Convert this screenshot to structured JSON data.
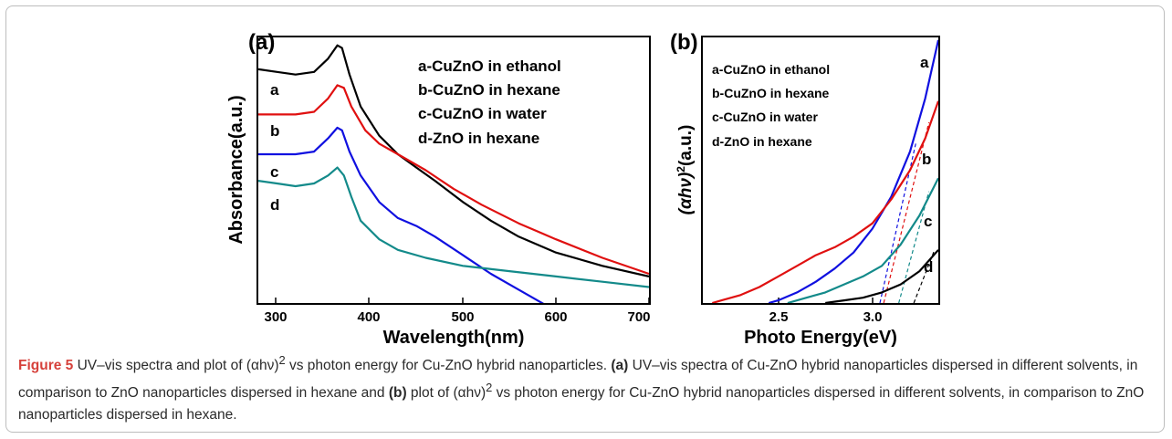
{
  "chart_data": [
    {
      "type": "line",
      "panel_label": "(a)",
      "xlabel": "Wavelength(nm)",
      "ylabel": "Absorbance(a.u.)",
      "xlim": [
        280,
        700
      ],
      "ylim": [
        0,
        1.0
      ],
      "xticks": [
        300,
        400,
        500,
        600,
        700
      ],
      "yticks_visible": false,
      "grid": false,
      "legend_position": "top-right",
      "legend": [
        "a-CuZnO in ethanol",
        "b-CuZnO in hexane",
        "c-CuZnO in water",
        "d-ZnO in hexane"
      ],
      "series": [
        {
          "name": "a",
          "color": "#000000",
          "points": [
            [
              280,
              0.88
            ],
            [
              300,
              0.87
            ],
            [
              320,
              0.86
            ],
            [
              340,
              0.87
            ],
            [
              355,
              0.92
            ],
            [
              365,
              0.97
            ],
            [
              370,
              0.96
            ],
            [
              378,
              0.86
            ],
            [
              390,
              0.74
            ],
            [
              410,
              0.63
            ],
            [
              430,
              0.56
            ],
            [
              450,
              0.51
            ],
            [
              470,
              0.46
            ],
            [
              500,
              0.38
            ],
            [
              530,
              0.31
            ],
            [
              560,
              0.25
            ],
            [
              600,
              0.19
            ],
            [
              650,
              0.14
            ],
            [
              700,
              0.1
            ]
          ]
        },
        {
          "name": "b",
          "color": "#e01010",
          "points": [
            [
              280,
              0.71
            ],
            [
              300,
              0.71
            ],
            [
              320,
              0.71
            ],
            [
              340,
              0.72
            ],
            [
              355,
              0.77
            ],
            [
              365,
              0.82
            ],
            [
              372,
              0.81
            ],
            [
              380,
              0.74
            ],
            [
              395,
              0.65
            ],
            [
              410,
              0.6
            ],
            [
              430,
              0.56
            ],
            [
              460,
              0.5
            ],
            [
              490,
              0.43
            ],
            [
              520,
              0.37
            ],
            [
              560,
              0.3
            ],
            [
              600,
              0.24
            ],
            [
              650,
              0.17
            ],
            [
              700,
              0.11
            ]
          ]
        },
        {
          "name": "c",
          "color": "#1010e0",
          "points": [
            [
              280,
              0.56
            ],
            [
              300,
              0.56
            ],
            [
              320,
              0.56
            ],
            [
              340,
              0.57
            ],
            [
              355,
              0.62
            ],
            [
              365,
              0.66
            ],
            [
              370,
              0.65
            ],
            [
              378,
              0.57
            ],
            [
              390,
              0.48
            ],
            [
              410,
              0.38
            ],
            [
              430,
              0.32
            ],
            [
              450,
              0.29
            ],
            [
              470,
              0.25
            ],
            [
              500,
              0.18
            ],
            [
              530,
              0.11
            ],
            [
              560,
              0.05
            ],
            [
              590,
              -0.01
            ]
          ]
        },
        {
          "name": "d",
          "color": "#138a8a",
          "points": [
            [
              280,
              0.46
            ],
            [
              300,
              0.45
            ],
            [
              320,
              0.44
            ],
            [
              340,
              0.45
            ],
            [
              355,
              0.48
            ],
            [
              365,
              0.51
            ],
            [
              372,
              0.48
            ],
            [
              380,
              0.4
            ],
            [
              390,
              0.31
            ],
            [
              410,
              0.24
            ],
            [
              430,
              0.2
            ],
            [
              460,
              0.17
            ],
            [
              500,
              0.14
            ],
            [
              550,
              0.12
            ],
            [
              600,
              0.1
            ],
            [
              650,
              0.08
            ],
            [
              700,
              0.06
            ]
          ]
        }
      ]
    },
    {
      "type": "line",
      "panel_label": "(b)",
      "xlabel": "Photo Energy(eV)",
      "ylabel_prefix": "(αhν)",
      "ylabel_sup": "2",
      "ylabel_suffix": "(a.u.)",
      "xlim": [
        2.1,
        3.35
      ],
      "ylim": [
        0,
        1.0
      ],
      "xticks": [
        2.5,
        3.0
      ],
      "yticks_visible": false,
      "grid": false,
      "legend_position": "top-left",
      "legend": [
        "a-CuZnO in ethanol",
        "b-CuZnO in hexane",
        "c-CuZnO in water",
        "d-ZnO in hexane"
      ],
      "series": [
        {
          "name": "a",
          "color": "#1010e0",
          "points": [
            [
              2.45,
              0.0
            ],
            [
              2.5,
              0.01
            ],
            [
              2.6,
              0.04
            ],
            [
              2.7,
              0.08
            ],
            [
              2.8,
              0.13
            ],
            [
              2.9,
              0.19
            ],
            [
              3.0,
              0.28
            ],
            [
              3.1,
              0.4
            ],
            [
              3.2,
              0.57
            ],
            [
              3.28,
              0.77
            ],
            [
              3.35,
              0.99
            ]
          ]
        },
        {
          "name": "b",
          "color": "#e01010",
          "points": [
            [
              2.15,
              0.0
            ],
            [
              2.2,
              0.01
            ],
            [
              2.3,
              0.03
            ],
            [
              2.4,
              0.06
            ],
            [
              2.5,
              0.1
            ],
            [
              2.6,
              0.14
            ],
            [
              2.7,
              0.18
            ],
            [
              2.8,
              0.21
            ],
            [
              2.9,
              0.25
            ],
            [
              3.0,
              0.3
            ],
            [
              3.1,
              0.39
            ],
            [
              3.2,
              0.5
            ],
            [
              3.28,
              0.62
            ],
            [
              3.35,
              0.76
            ]
          ]
        },
        {
          "name": "c",
          "color": "#138a8a",
          "points": [
            [
              2.55,
              0.0
            ],
            [
              2.65,
              0.02
            ],
            [
              2.75,
              0.04
            ],
            [
              2.85,
              0.07
            ],
            [
              2.95,
              0.1
            ],
            [
              3.05,
              0.14
            ],
            [
              3.15,
              0.22
            ],
            [
              3.25,
              0.33
            ],
            [
              3.35,
              0.47
            ]
          ]
        },
        {
          "name": "d",
          "color": "#000000",
          "points": [
            [
              2.75,
              0.0
            ],
            [
              2.85,
              0.01
            ],
            [
              2.95,
              0.02
            ],
            [
              3.05,
              0.04
            ],
            [
              3.15,
              0.07
            ],
            [
              3.25,
              0.12
            ],
            [
              3.35,
              0.2
            ]
          ]
        }
      ],
      "tangent_lines": [
        {
          "series": "a",
          "color": "#1010e0",
          "from": [
            3.04,
            0.0
          ],
          "to": [
            3.23,
            0.6
          ]
        },
        {
          "series": "b",
          "color": "#e01010",
          "from": [
            3.06,
            0.0
          ],
          "to": [
            3.3,
            0.68
          ]
        },
        {
          "series": "c",
          "color": "#138a8a",
          "from": [
            3.14,
            0.0
          ],
          "to": [
            3.3,
            0.42
          ]
        },
        {
          "series": "d",
          "color": "#000000",
          "from": [
            3.22,
            0.0
          ],
          "to": [
            3.33,
            0.2
          ]
        }
      ]
    }
  ],
  "panel_a": {
    "label": "(a)",
    "xlabel": "Wavelength(nm)",
    "ylabel": "Absorbance(a.u.)",
    "tick_labels": [
      "300",
      "400",
      "500",
      "600",
      "700"
    ],
    "legend": [
      "a-CuZnO in ethanol",
      "b-CuZnO in hexane",
      "c-CuZnO in water",
      "d-ZnO in hexane"
    ],
    "curve_labels": [
      "a",
      "b",
      "c",
      "d"
    ]
  },
  "panel_b": {
    "label": "(b)",
    "xlabel": "Photo Energy(eV)",
    "ylabel_prefix": "(αhν)",
    "ylabel_sup": "2",
    "ylabel_suffix": "(a.u.)",
    "tick_labels": [
      "2.5",
      "3.0"
    ],
    "legend": [
      "a-CuZnO in ethanol",
      "b-CuZnO in hexane",
      "c-CuZnO in water",
      "d-ZnO in hexane"
    ],
    "curve_labels": [
      "a",
      "b",
      "c",
      "d"
    ]
  },
  "caption": {
    "figure_label": "Figure 5",
    "text_1": " UV–vis spectra and plot of (αhν)",
    "sup_1": "2",
    "text_2": " vs photon energy for Cu-ZnO hybrid nanoparticles. ",
    "bold_a": "(a)",
    "text_3": " UV–vis spectra of Cu-ZnO hybrid nanoparticles dispersed in different solvents, in comparison to ZnO nanoparticles dispersed in hexane and ",
    "bold_b": "(b)",
    "text_4": " plot of (αhν)",
    "sup_2": "2",
    "text_5": " vs photon energy for Cu-ZnO hybrid nanoparticles dispersed in different solvents, in comparison to ZnO nanoparticles dispersed in hexane."
  }
}
